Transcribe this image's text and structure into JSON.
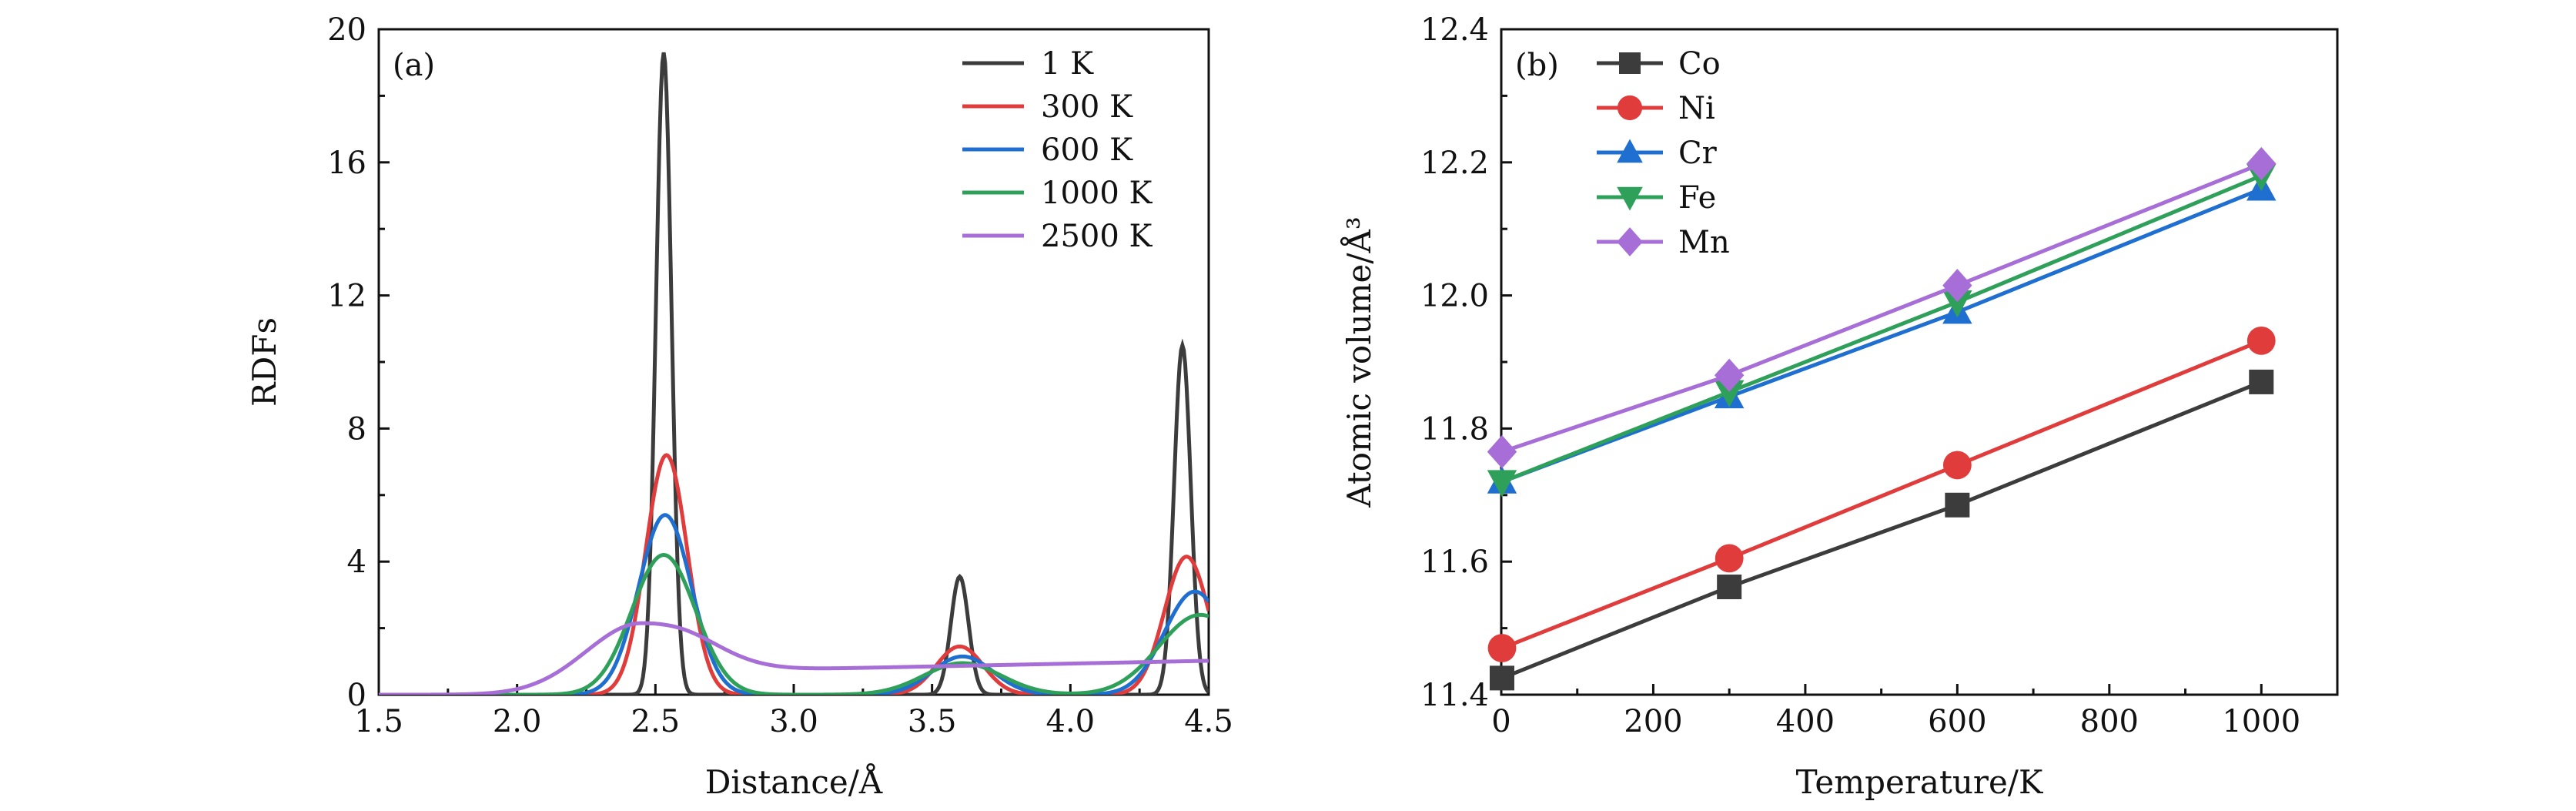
{
  "chart_data": [
    {
      "panel": "(a)",
      "type": "line",
      "xlabel": "Distance/Å",
      "ylabel": "RDFs",
      "xlim": [
        1.5,
        4.5
      ],
      "ylim": [
        0,
        20
      ],
      "xticks": [
        "1.5",
        "2.0",
        "2.5",
        "3.0",
        "3.5",
        "4.0",
        "4.5"
      ],
      "yticks": [
        "0",
        "4",
        "8",
        "12",
        "16",
        "20"
      ],
      "legend_position": "top-right",
      "series": [
        {
          "name": "1 K",
          "color": "#3c3c3c",
          "peaks": [
            {
              "mu": 2.53,
              "sigma": 0.028,
              "amp": 19.3
            },
            {
              "mu": 3.6,
              "sigma": 0.032,
              "amp": 3.55
            },
            {
              "mu": 4.405,
              "sigma": 0.03,
              "amp": 10.5
            }
          ],
          "tail": 0
        },
        {
          "name": "300 K",
          "color": "#e03c3c",
          "peaks": [
            {
              "mu": 2.54,
              "sigma": 0.075,
              "amp": 7.2
            },
            {
              "mu": 3.6,
              "sigma": 0.085,
              "amp": 1.45
            },
            {
              "mu": 4.42,
              "sigma": 0.08,
              "amp": 4.15
            }
          ],
          "tail": 0
        },
        {
          "name": "600 K",
          "color": "#1f6fd1",
          "peaks": [
            {
              "mu": 2.535,
              "sigma": 0.095,
              "amp": 5.4
            },
            {
              "mu": 3.61,
              "sigma": 0.11,
              "amp": 1.15
            },
            {
              "mu": 4.45,
              "sigma": 0.11,
              "amp": 3.1
            }
          ],
          "tail": 0
        },
        {
          "name": "1000 K",
          "color": "#2fa05a",
          "peaks": [
            {
              "mu": 2.53,
              "sigma": 0.115,
              "amp": 4.2
            },
            {
              "mu": 3.61,
              "sigma": 0.14,
              "amp": 0.95
            },
            {
              "mu": 4.47,
              "sigma": 0.15,
              "amp": 2.4
            }
          ],
          "tail": 0
        },
        {
          "name": "2500 K",
          "color": "#a66ed6",
          "peaks": [
            {
              "mu": 2.45,
              "sigma": 0.2,
              "amp": 2.15
            }
          ],
          "tail": 0.85
        }
      ]
    },
    {
      "panel": "(b)",
      "type": "line",
      "xlabel": "Temperature/K",
      "ylabel": "Atomic volume/Å³",
      "xlim": [
        0,
        1100
      ],
      "ylim": [
        11.4,
        12.4
      ],
      "xticks": [
        "0",
        "200",
        "400",
        "600",
        "800",
        "1000"
      ],
      "yticks": [
        "11.4",
        "11.6",
        "11.8",
        "12.0",
        "12.2",
        "12.4"
      ],
      "legend_position": "top-left",
      "x": [
        1,
        300,
        600,
        1000
      ],
      "series": [
        {
          "name": "Co",
          "color": "#3c3c3c",
          "marker": "square",
          "values": [
            11.425,
            11.562,
            11.685,
            11.87
          ]
        },
        {
          "name": "Ni",
          "color": "#e03c3c",
          "marker": "circle",
          "values": [
            11.47,
            11.605,
            11.745,
            11.932
          ]
        },
        {
          "name": "Cr",
          "color": "#1f6fd1",
          "marker": "triangle-up",
          "values": [
            11.72,
            11.848,
            11.975,
            12.16
          ]
        },
        {
          "name": "Fe",
          "color": "#2fa05a",
          "marker": "triangle-down",
          "values": [
            11.72,
            11.855,
            11.99,
            12.18
          ]
        },
        {
          "name": "Mn",
          "color": "#a66ed6",
          "marker": "diamond",
          "values": [
            11.765,
            11.88,
            12.015,
            12.198
          ]
        }
      ]
    }
  ]
}
